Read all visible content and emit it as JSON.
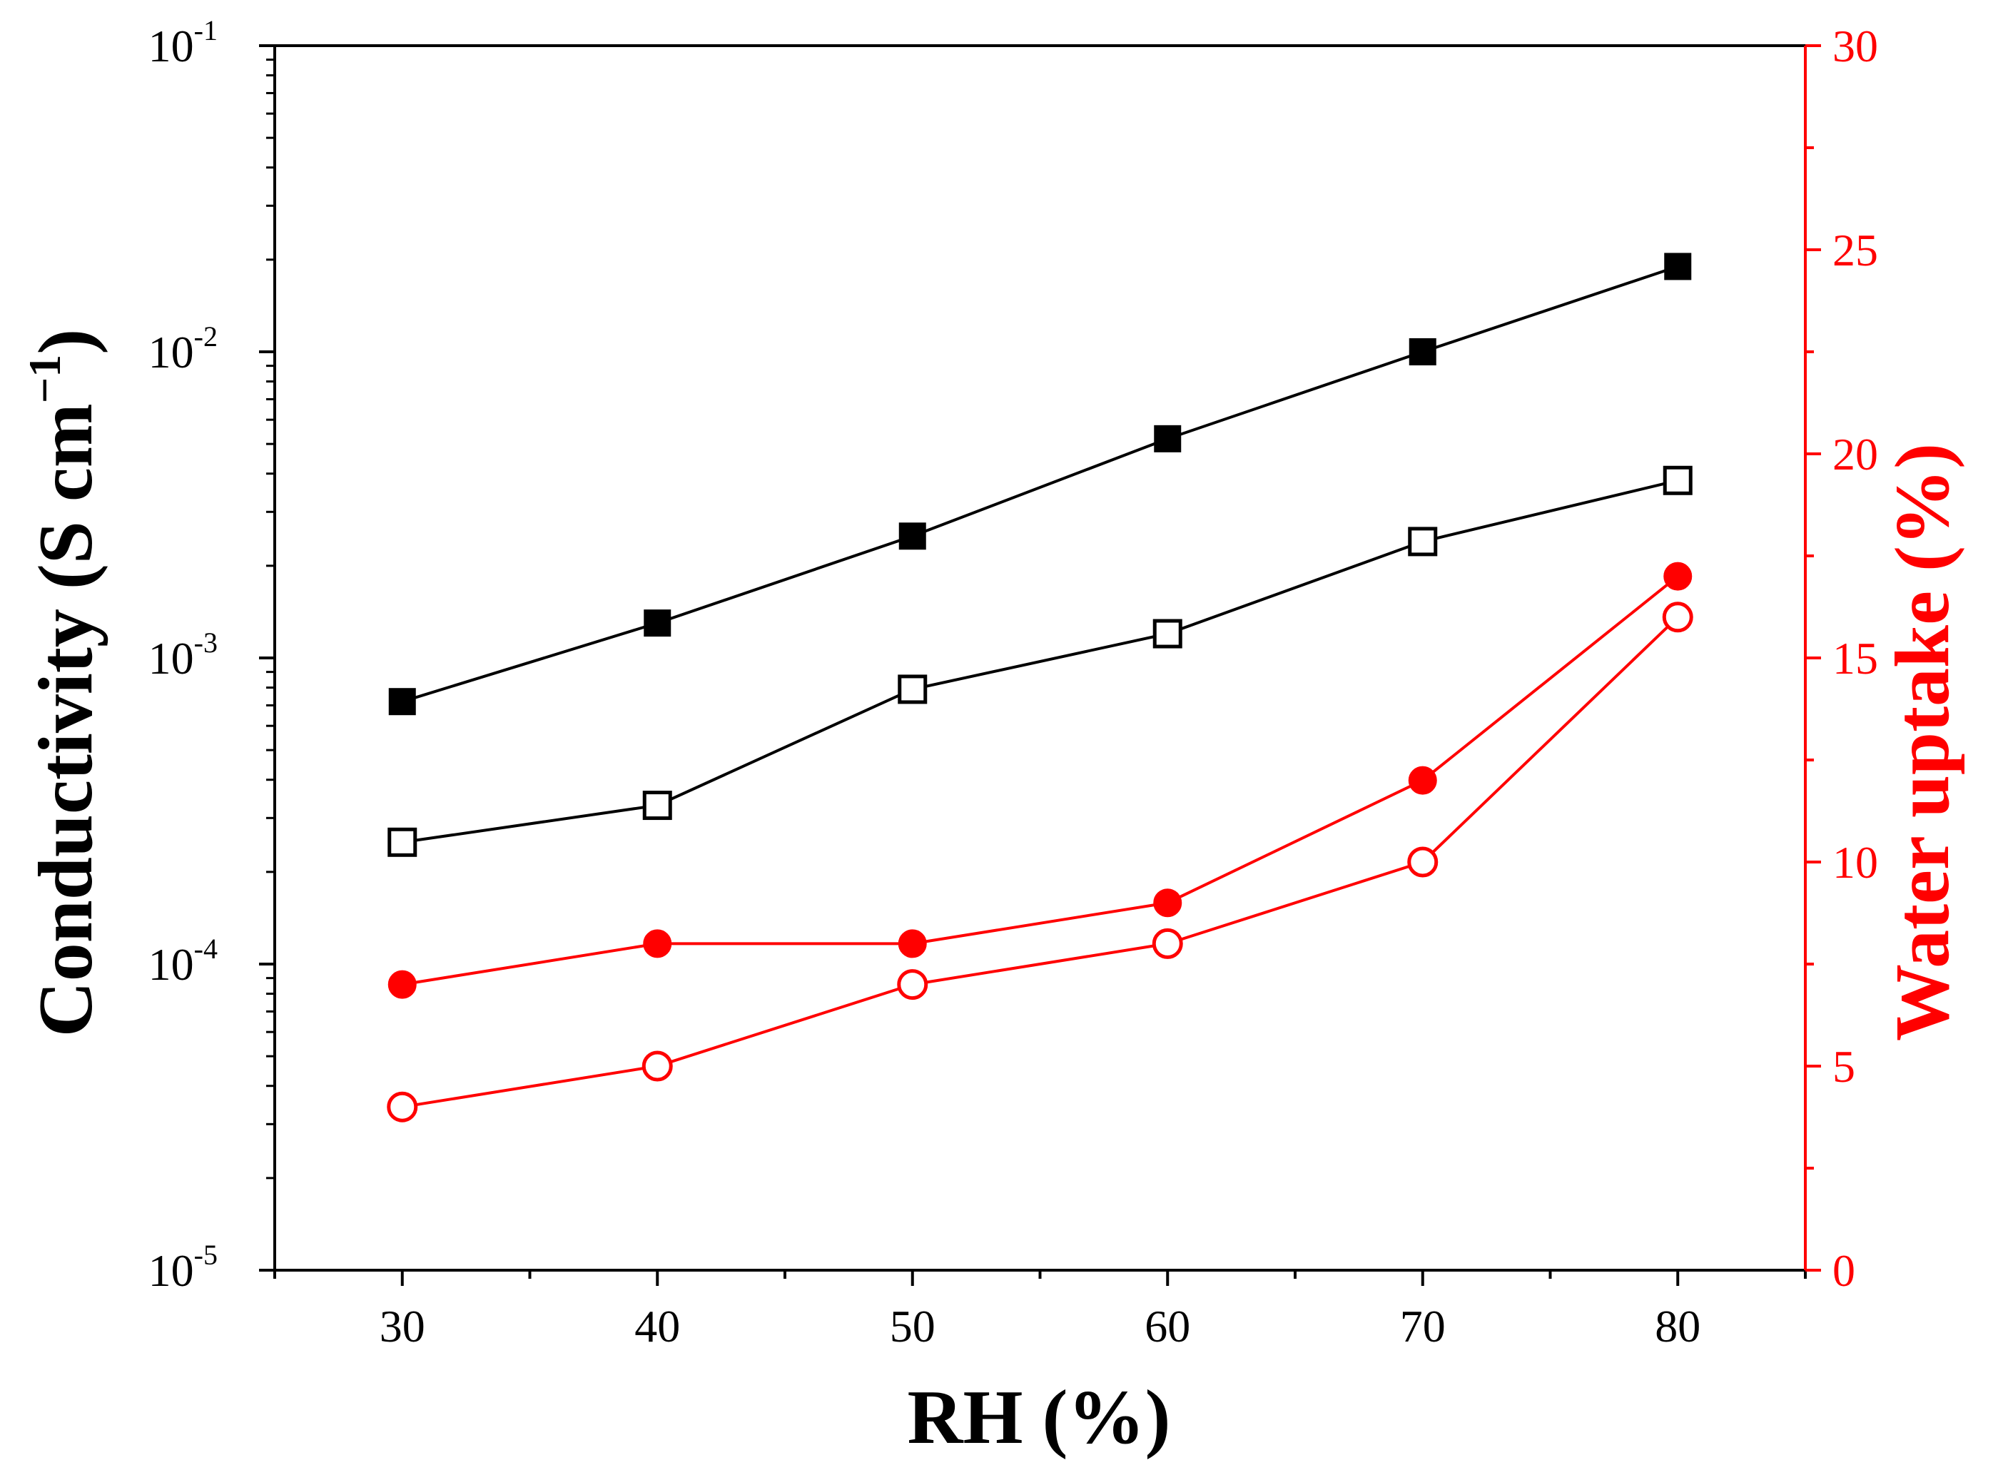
{
  "chart_data": {
    "type": "line",
    "title": "",
    "xlabel": "RH (%)",
    "ylabel_left": {
      "text": "Conductivity (S cm",
      "superscript": "−1",
      "close": ")"
    },
    "ylabel_right": "Water uptake (%)",
    "xlim": [
      25,
      85
    ],
    "x_ticks": [
      30,
      40,
      50,
      60,
      70,
      80
    ],
    "ylim_left": [
      1e-05,
      0.1
    ],
    "yscale_left": "log",
    "y_ticks_left": [
      {
        "value": 1e-05,
        "base": "10",
        "exp": "-5"
      },
      {
        "value": 0.0001,
        "base": "10",
        "exp": "-4"
      },
      {
        "value": 0.001,
        "base": "10",
        "exp": "-3"
      },
      {
        "value": 0.01,
        "base": "10",
        "exp": "-2"
      },
      {
        "value": 0.1,
        "base": "10",
        "exp": "-1"
      }
    ],
    "ylim_right": [
      0,
      30
    ],
    "y_ticks_right": [
      0,
      5,
      10,
      15,
      20,
      25,
      30
    ],
    "grid": false,
    "legend": "none",
    "colors": {
      "axis_left": "#000000",
      "axis_right": "#ff0000",
      "black_series": "#000000",
      "red_series": "#ff0000"
    },
    "x": [
      30,
      40,
      50,
      60,
      70,
      80
    ],
    "series": [
      {
        "name": "conductivity-filled",
        "axis": "left",
        "marker": "square",
        "filled": true,
        "color": "#000000",
        "values": [
          0.00072,
          0.0013,
          0.0025,
          0.0052,
          0.01,
          0.019
        ]
      },
      {
        "name": "conductivity-open",
        "axis": "left",
        "marker": "square",
        "filled": false,
        "color": "#000000",
        "values": [
          0.00025,
          0.00033,
          0.00079,
          0.0012,
          0.0024,
          0.0038
        ]
      },
      {
        "name": "water-uptake-filled",
        "axis": "right",
        "marker": "circle",
        "filled": true,
        "color": "#ff0000",
        "values": [
          7,
          8,
          8,
          9,
          12,
          17
        ]
      },
      {
        "name": "water-uptake-open",
        "axis": "right",
        "marker": "circle",
        "filled": false,
        "color": "#ff0000",
        "values": [
          4,
          5,
          7,
          8,
          10,
          16
        ]
      }
    ]
  }
}
